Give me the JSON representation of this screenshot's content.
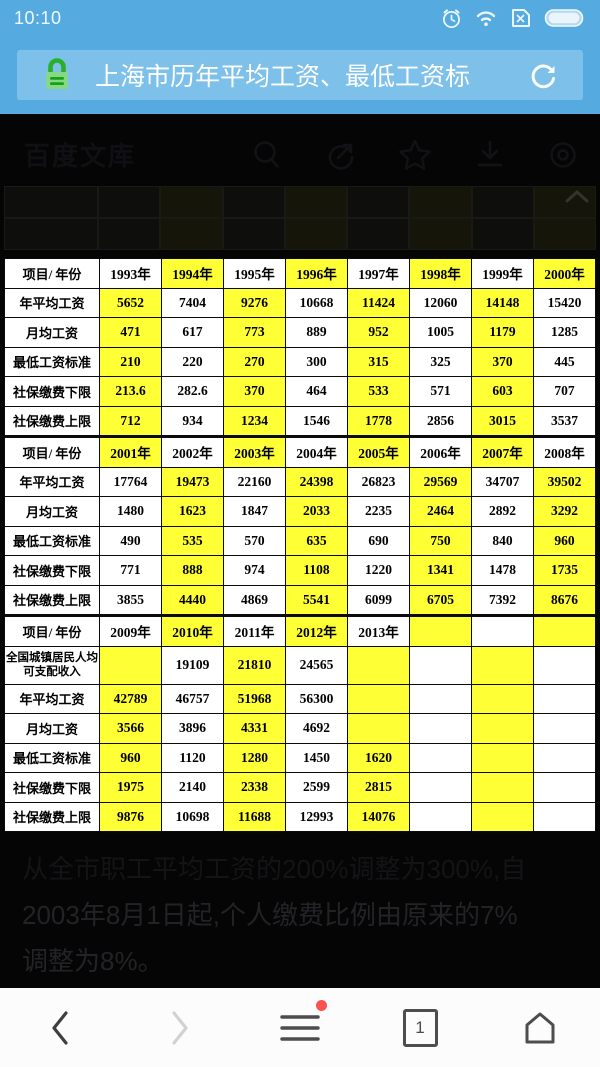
{
  "colors": {
    "chrome_blue": "#55aae0",
    "address_field_blue": "#7dc0e9",
    "highlight_yellow": "#ffff35",
    "lock_green": "#2db22d",
    "badge_red": "#fa5151",
    "page_background": "#050505",
    "table_background": "#ffffff"
  },
  "status_bar": {
    "time": "10:10",
    "icons": [
      "alarm-icon",
      "wifi-icon",
      "no-sim-icon",
      "battery-icon"
    ]
  },
  "address_bar": {
    "title": "上海市历年平均工资、最低工资标",
    "lock_icon": "secure-lock-icon",
    "refresh_icon": "refresh-icon"
  },
  "page_header": {
    "brand": "百度文库",
    "icons": [
      "search-icon",
      "share-icon",
      "star-icon",
      "download-icon",
      "settings-icon"
    ]
  },
  "table": {
    "rows": [
      {
        "label": "项目/ 年份",
        "header": true,
        "cells": [
          [
            "1993年",
            0
          ],
          [
            "1994年",
            1
          ],
          [
            "1995年",
            0
          ],
          [
            "1996年",
            1
          ],
          [
            "1997年",
            0
          ],
          [
            "1998年",
            1
          ],
          [
            "1999年",
            0
          ],
          [
            "2000年",
            1
          ]
        ]
      },
      {
        "label": "年平均工资",
        "cells": [
          [
            "5652",
            1
          ],
          [
            "7404",
            0
          ],
          [
            "9276",
            1
          ],
          [
            "10668",
            0
          ],
          [
            "11424",
            1
          ],
          [
            "12060",
            0
          ],
          [
            "14148",
            1
          ],
          [
            "15420",
            0
          ]
        ]
      },
      {
        "label": "月均工资",
        "cells": [
          [
            "471",
            1
          ],
          [
            "617",
            0
          ],
          [
            "773",
            1
          ],
          [
            "889",
            0
          ],
          [
            "952",
            1
          ],
          [
            "1005",
            0
          ],
          [
            "1179",
            1
          ],
          [
            "1285",
            0
          ]
        ]
      },
      {
        "label": "最低工资标准",
        "cells": [
          [
            "210",
            1
          ],
          [
            "220",
            0
          ],
          [
            "270",
            1
          ],
          [
            "300",
            0
          ],
          [
            "315",
            1
          ],
          [
            "325",
            0
          ],
          [
            "370",
            1
          ],
          [
            "445",
            0
          ]
        ]
      },
      {
        "label": "社保缴费下限",
        "cells": [
          [
            "213.6",
            1
          ],
          [
            "282.6",
            0
          ],
          [
            "370",
            1
          ],
          [
            "464",
            0
          ],
          [
            "533",
            1
          ],
          [
            "571",
            0
          ],
          [
            "603",
            1
          ],
          [
            "707",
            0
          ]
        ]
      },
      {
        "label": "社保缴费上限",
        "cells": [
          [
            "712",
            1
          ],
          [
            "934",
            0
          ],
          [
            "1234",
            1
          ],
          [
            "1546",
            0
          ],
          [
            "1778",
            1
          ],
          [
            "2856",
            0
          ],
          [
            "3015",
            1
          ],
          [
            "3537",
            0
          ]
        ]
      },
      {
        "label": "项目/ 年份",
        "header": true,
        "sep": true,
        "cells": [
          [
            "2001年",
            1
          ],
          [
            "2002年",
            0
          ],
          [
            "2003年",
            1
          ],
          [
            "2004年",
            0
          ],
          [
            "2005年",
            1
          ],
          [
            "2006年",
            0
          ],
          [
            "2007年",
            1
          ],
          [
            "2008年",
            0
          ]
        ]
      },
      {
        "label": "年平均工资",
        "cells": [
          [
            "17764",
            0
          ],
          [
            "19473",
            1
          ],
          [
            "22160",
            0
          ],
          [
            "24398",
            1
          ],
          [
            "26823",
            0
          ],
          [
            "29569",
            1
          ],
          [
            "34707",
            0
          ],
          [
            "39502",
            1
          ]
        ]
      },
      {
        "label": "月均工资",
        "cells": [
          [
            "1480",
            0
          ],
          [
            "1623",
            1
          ],
          [
            "1847",
            0
          ],
          [
            "2033",
            1
          ],
          [
            "2235",
            0
          ],
          [
            "2464",
            1
          ],
          [
            "2892",
            0
          ],
          [
            "3292",
            1
          ]
        ]
      },
      {
        "label": "最低工资标准",
        "cells": [
          [
            "490",
            0
          ],
          [
            "535",
            1
          ],
          [
            "570",
            0
          ],
          [
            "635",
            1
          ],
          [
            "690",
            0
          ],
          [
            "750",
            1
          ],
          [
            "840",
            0
          ],
          [
            "960",
            1
          ]
        ]
      },
      {
        "label": "社保缴费下限",
        "cells": [
          [
            "771",
            0
          ],
          [
            "888",
            1
          ],
          [
            "974",
            0
          ],
          [
            "1108",
            1
          ],
          [
            "1220",
            0
          ],
          [
            "1341",
            1
          ],
          [
            "1478",
            0
          ],
          [
            "1735",
            1
          ]
        ]
      },
      {
        "label": "社保缴费上限",
        "cells": [
          [
            "3855",
            0
          ],
          [
            "4440",
            1
          ],
          [
            "4869",
            0
          ],
          [
            "5541",
            1
          ],
          [
            "6099",
            0
          ],
          [
            "6705",
            1
          ],
          [
            "7392",
            0
          ],
          [
            "8676",
            1
          ]
        ]
      },
      {
        "label": "项目/ 年份",
        "header": true,
        "sep": true,
        "cells": [
          [
            "2009年",
            0
          ],
          [
            "2010年",
            1
          ],
          [
            "2011年",
            0
          ],
          [
            "2012年",
            1
          ],
          [
            "2013年",
            0
          ],
          [
            "",
            1
          ],
          [
            "",
            0
          ],
          [
            "",
            1
          ]
        ]
      },
      {
        "label": "全国城镇居民人均可支配收入",
        "tall": true,
        "cells": [
          [
            "",
            1
          ],
          [
            "19109",
            0
          ],
          [
            "21810",
            1
          ],
          [
            "24565",
            0
          ],
          [
            "",
            1
          ],
          [
            "",
            0
          ],
          [
            "",
            1
          ],
          [
            "",
            0
          ]
        ]
      },
      {
        "label": "年平均工资",
        "cells": [
          [
            "42789",
            1
          ],
          [
            "46757",
            0
          ],
          [
            "51968",
            1
          ],
          [
            "56300",
            0
          ],
          [
            "",
            1
          ],
          [
            "",
            0
          ],
          [
            "",
            1
          ],
          [
            "",
            0
          ]
        ]
      },
      {
        "label": "月均工资",
        "cells": [
          [
            "3566",
            1
          ],
          [
            "3896",
            0
          ],
          [
            "4331",
            1
          ],
          [
            "4692",
            0
          ],
          [
            "",
            1
          ],
          [
            "",
            0
          ],
          [
            "",
            1
          ],
          [
            "",
            0
          ]
        ]
      },
      {
        "label": "最低工资标准",
        "cells": [
          [
            "960",
            1
          ],
          [
            "1120",
            0
          ],
          [
            "1280",
            1
          ],
          [
            "1450",
            0
          ],
          [
            "1620",
            1
          ],
          [
            "",
            0
          ],
          [
            "",
            1
          ],
          [
            "",
            0
          ]
        ]
      },
      {
        "label": "社保缴费下限",
        "cells": [
          [
            "1975",
            1
          ],
          [
            "2140",
            0
          ],
          [
            "2338",
            1
          ],
          [
            "2599",
            0
          ],
          [
            "2815",
            1
          ],
          [
            "",
            0
          ],
          [
            "",
            1
          ],
          [
            "",
            0
          ]
        ]
      },
      {
        "label": "社保缴费上限",
        "cells": [
          [
            "9876",
            1
          ],
          [
            "10698",
            0
          ],
          [
            "11688",
            1
          ],
          [
            "12993",
            0
          ],
          [
            "14076",
            1
          ],
          [
            "",
            0
          ],
          [
            "",
            1
          ],
          [
            "",
            0
          ]
        ]
      }
    ]
  },
  "footnote": {
    "line1": "从全市职工平均工资的200%调整为300%,自",
    "line2": "2003年8月1日起,个人缴费比例由原来的7%",
    "line3": "调整为8%。"
  },
  "nav_bar": {
    "tab_count": "1",
    "menu_has_badge": true
  }
}
